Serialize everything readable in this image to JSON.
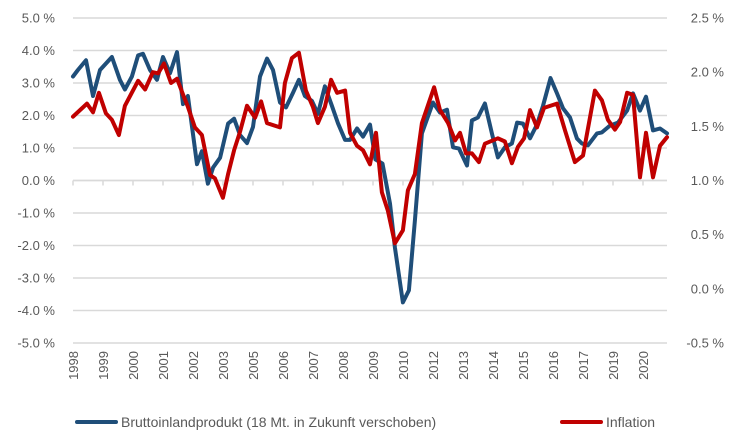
{
  "chart_data": {
    "type": "line",
    "title": "",
    "xlabel": "",
    "ylabel": "",
    "x_tick_labels": [
      "1998",
      "1999",
      "2000",
      "2001",
      "2002",
      "2003",
      "2005",
      "2006",
      "2007",
      "2008",
      "2009",
      "2010",
      "2012",
      "2013",
      "2014",
      "2015",
      "2016",
      "2017",
      "2019",
      "2020"
    ],
    "xlim": [
      1998.0,
      2020.9
    ],
    "y_left": {
      "ylim": [
        -5.0,
        5.0
      ],
      "ticks": [
        5.0,
        4.0,
        3.0,
        2.0,
        1.0,
        0.0,
        -1.0,
        -2.0,
        -3.0,
        -4.0,
        -5.0
      ],
      "tick_labels": [
        "5.0 %",
        "4.0 %",
        "3.0 %",
        "2.0 %",
        "1.0 %",
        "0.0 %",
        "-1.0 %",
        "-2.0 %",
        "-3.0 %",
        "-4.0 %",
        "-5.0 %"
      ]
    },
    "y_right": {
      "ylim": [
        -0.5,
        2.5
      ],
      "ticks": [
        2.5,
        2.0,
        1.5,
        1.0,
        0.5,
        0.0,
        -0.5
      ],
      "tick_labels": [
        "2.5 %",
        "2.0 %",
        "1.5 %",
        "1.0 %",
        "0.5 %",
        "0.0 %",
        "-0.5 %"
      ]
    },
    "grid": true,
    "legend_position": "bottom",
    "series": [
      {
        "name": "Bruttoinlandprodukt (18 Mt. in Zukunft verschoben)",
        "axis": "left",
        "color": "#1f4e79",
        "points": [
          [
            1998.0,
            3.2
          ],
          [
            1998.19,
            3.4
          ],
          [
            1998.5,
            3.7
          ],
          [
            1998.77,
            2.6
          ],
          [
            1999.04,
            3.4
          ],
          [
            1999.5,
            3.8
          ],
          [
            1999.81,
            3.1
          ],
          [
            2000.0,
            2.8
          ],
          [
            2000.27,
            3.2
          ],
          [
            2000.51,
            3.85
          ],
          [
            2000.7,
            3.9
          ],
          [
            2000.97,
            3.4
          ],
          [
            2001.24,
            3.1
          ],
          [
            2001.47,
            3.8
          ],
          [
            2001.74,
            3.3
          ],
          [
            2002.01,
            3.95
          ],
          [
            2002.24,
            2.35
          ],
          [
            2002.43,
            2.6
          ],
          [
            2002.78,
            0.5
          ],
          [
            2002.97,
            0.9
          ],
          [
            2003.2,
            -0.1
          ],
          [
            2003.4,
            0.4
          ],
          [
            2003.67,
            0.7
          ],
          [
            2003.98,
            1.75
          ],
          [
            2004.21,
            1.9
          ],
          [
            2004.44,
            1.4
          ],
          [
            2004.71,
            1.15
          ],
          [
            2004.94,
            1.65
          ],
          [
            2005.21,
            3.2
          ],
          [
            2005.48,
            3.75
          ],
          [
            2005.71,
            3.4
          ],
          [
            2005.98,
            2.4
          ],
          [
            2006.21,
            2.25
          ],
          [
            2006.48,
            2.7
          ],
          [
            2006.71,
            3.1
          ],
          [
            2006.94,
            2.6
          ],
          [
            2007.21,
            2.45
          ],
          [
            2007.44,
            2.05
          ],
          [
            2007.71,
            2.9
          ],
          [
            2007.98,
            2.3
          ],
          [
            2008.22,
            1.75
          ],
          [
            2008.49,
            1.25
          ],
          [
            2008.68,
            1.25
          ],
          [
            2008.95,
            1.6
          ],
          [
            2009.18,
            1.35
          ],
          [
            2009.45,
            1.72
          ],
          [
            2009.66,
            0.65
          ],
          [
            2009.93,
            0.52
          ],
          [
            2010.22,
            -0.71
          ],
          [
            2010.41,
            -2.06
          ],
          [
            2010.72,
            -3.75
          ],
          [
            2010.95,
            -3.38
          ],
          [
            2011.18,
            -1.23
          ],
          [
            2011.45,
            1.45
          ],
          [
            2011.88,
            2.4
          ],
          [
            2012.15,
            2.09
          ],
          [
            2012.42,
            2.18
          ],
          [
            2012.65,
            1.02
          ],
          [
            2012.88,
            0.98
          ],
          [
            2013.19,
            0.46
          ],
          [
            2013.38,
            1.85
          ],
          [
            2013.61,
            1.94
          ],
          [
            2013.88,
            2.37
          ],
          [
            2014.15,
            1.45
          ],
          [
            2014.38,
            0.71
          ],
          [
            2014.65,
            1.02
          ],
          [
            2014.92,
            1.14
          ],
          [
            2015.12,
            1.78
          ],
          [
            2015.35,
            1.75
          ],
          [
            2015.62,
            1.3
          ],
          [
            2015.89,
            1.72
          ],
          [
            2016.12,
            2.3
          ],
          [
            2016.41,
            3.15
          ],
          [
            2016.66,
            2.68
          ],
          [
            2016.89,
            2.22
          ],
          [
            2017.16,
            1.94
          ],
          [
            2017.43,
            1.29
          ],
          [
            2017.62,
            1.14
          ],
          [
            2017.85,
            1.08
          ],
          [
            2018.2,
            1.45
          ],
          [
            2018.39,
            1.48
          ],
          [
            2018.7,
            1.69
          ],
          [
            2019.01,
            1.78
          ],
          [
            2019.36,
            2.15
          ],
          [
            2019.59,
            2.68
          ],
          [
            2019.86,
            2.15
          ],
          [
            2020.09,
            2.58
          ],
          [
            2020.36,
            1.54
          ],
          [
            2020.63,
            1.6
          ],
          [
            2020.9,
            1.45
          ]
        ]
      },
      {
        "name": "Inflation",
        "axis": "right",
        "color": "#c00000",
        "points": [
          [
            1998.0,
            1.59
          ],
          [
            1998.54,
            1.71
          ],
          [
            1998.77,
            1.63
          ],
          [
            1999.0,
            1.81
          ],
          [
            1999.27,
            1.62
          ],
          [
            1999.5,
            1.56
          ],
          [
            1999.77,
            1.42
          ],
          [
            2000.0,
            1.69
          ],
          [
            2000.51,
            1.92
          ],
          [
            2000.78,
            1.84
          ],
          [
            2001.08,
            2.0
          ],
          [
            2001.28,
            1.99
          ],
          [
            2001.51,
            2.08
          ],
          [
            2001.78,
            1.9
          ],
          [
            2002.01,
            1.94
          ],
          [
            2002.28,
            1.77
          ],
          [
            2002.43,
            1.68
          ],
          [
            2002.7,
            1.49
          ],
          [
            2002.97,
            1.42
          ],
          [
            2003.28,
            1.05
          ],
          [
            2003.47,
            1.02
          ],
          [
            2003.78,
            0.84
          ],
          [
            2003.98,
            1.06
          ],
          [
            2004.21,
            1.28
          ],
          [
            2004.44,
            1.45
          ],
          [
            2004.71,
            1.69
          ],
          [
            2005.02,
            1.58
          ],
          [
            2005.25,
            1.73
          ],
          [
            2005.48,
            1.53
          ],
          [
            2005.98,
            1.49
          ],
          [
            2006.17,
            1.9
          ],
          [
            2006.44,
            2.13
          ],
          [
            2006.71,
            2.18
          ],
          [
            2006.98,
            1.83
          ],
          [
            2007.25,
            1.68
          ],
          [
            2007.44,
            1.53
          ],
          [
            2007.71,
            1.68
          ],
          [
            2007.95,
            1.93
          ],
          [
            2008.18,
            1.81
          ],
          [
            2008.49,
            1.83
          ],
          [
            2008.68,
            1.44
          ],
          [
            2008.95,
            1.32
          ],
          [
            2009.18,
            1.28
          ],
          [
            2009.45,
            1.15
          ],
          [
            2009.68,
            1.44
          ],
          [
            2009.91,
            0.89
          ],
          [
            2010.14,
            0.72
          ],
          [
            2010.41,
            0.42
          ],
          [
            2010.72,
            0.54
          ],
          [
            2010.91,
            0.91
          ],
          [
            2011.18,
            1.06
          ],
          [
            2011.45,
            1.53
          ],
          [
            2011.92,
            1.86
          ],
          [
            2012.15,
            1.65
          ],
          [
            2012.46,
            1.53
          ],
          [
            2012.73,
            1.37
          ],
          [
            2012.92,
            1.44
          ],
          [
            2013.15,
            1.25
          ],
          [
            2013.38,
            1.25
          ],
          [
            2013.65,
            1.17
          ],
          [
            2013.88,
            1.34
          ],
          [
            2014.38,
            1.39
          ],
          [
            2014.65,
            1.36
          ],
          [
            2014.92,
            1.16
          ],
          [
            2015.15,
            1.31
          ],
          [
            2015.39,
            1.39
          ],
          [
            2015.62,
            1.65
          ],
          [
            2015.89,
            1.49
          ],
          [
            2016.16,
            1.67
          ],
          [
            2016.66,
            1.71
          ],
          [
            2016.97,
            1.46
          ],
          [
            2017.35,
            1.17
          ],
          [
            2017.66,
            1.23
          ],
          [
            2018.12,
            1.83
          ],
          [
            2018.39,
            1.74
          ],
          [
            2018.62,
            1.56
          ],
          [
            2018.89,
            1.47
          ],
          [
            2019.09,
            1.54
          ],
          [
            2019.36,
            1.81
          ],
          [
            2019.59,
            1.79
          ],
          [
            2019.86,
            1.03
          ],
          [
            2020.09,
            1.44
          ],
          [
            2020.36,
            1.03
          ],
          [
            2020.63,
            1.32
          ],
          [
            2020.9,
            1.4
          ]
        ]
      }
    ]
  },
  "legend": {
    "items": [
      {
        "label": "Bruttoinlandprodukt (18 Mt. in Zukunft verschoben)",
        "color": "#1f4e79"
      },
      {
        "label": "Inflation",
        "color": "#c00000"
      }
    ]
  }
}
